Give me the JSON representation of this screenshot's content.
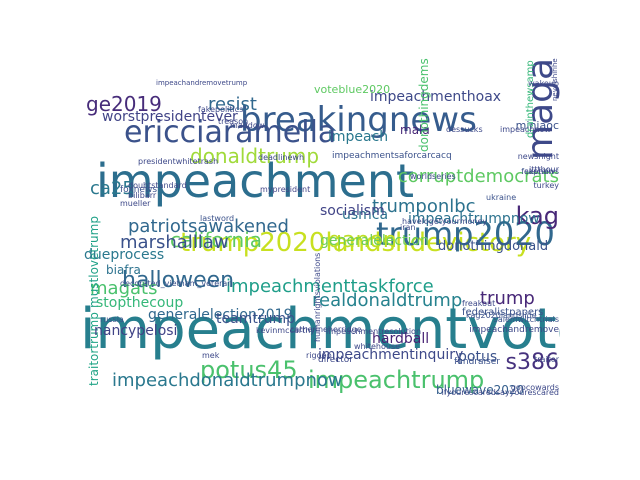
{
  "palette": {
    "dark_purple": "#46327e",
    "blue": "#365c8d",
    "teal": "#277f8e",
    "green_teal": "#1fa187",
    "green": "#4ac16d",
    "lime": "#a0da39",
    "yellow": "#dfe318",
    "indigo": "#482878"
  },
  "words": [
    {
      "text": "impeachmentvote",
      "color": "#277f8e"
    },
    {
      "text": "impeachment",
      "color": "#2c6e8e"
    },
    {
      "text": "trump2020landslidevictory",
      "color": "#c8e020"
    },
    {
      "text": "breakingnews",
      "color": "#365c8d"
    },
    {
      "text": "ericciaramella",
      "color": "#3b528b"
    },
    {
      "text": "trump2020",
      "color": "#31688e"
    },
    {
      "text": "maga",
      "color": "#3e4989"
    },
    {
      "text": "impeachtrump",
      "color": "#4ac16d"
    },
    {
      "text": "kag",
      "color": "#482878"
    },
    {
      "text": "qanon",
      "color": "#bddf26"
    },
    {
      "text": "california",
      "color": "#5ec962"
    },
    {
      "text": "potus45",
      "color": "#4ac16d"
    },
    {
      "text": "marshalllaw",
      "color": "#3b528b"
    },
    {
      "text": "patriotsawakened",
      "color": "#31688e"
    },
    {
      "text": "donaldtrump",
      "color": "#a0da39"
    },
    {
      "text": "halloween",
      "color": "#31688e"
    },
    {
      "text": "resist",
      "color": "#31688e"
    },
    {
      "text": "ge2019",
      "color": "#472c7a"
    },
    {
      "text": "impeachmenttaskforce",
      "color": "#1f9e89"
    },
    {
      "text": "realdonaldtrump",
      "color": "#26828e"
    },
    {
      "text": "impeachdonaldtrumpnow",
      "color": "#2a788e"
    },
    {
      "text": "trumponlbc",
      "color": "#2c728e"
    },
    {
      "text": "corruptdemocrats",
      "color": "#5ec962"
    },
    {
      "text": "impeachmenthoax",
      "color": "#3e4989"
    },
    {
      "text": "ca25",
      "color": "#2a788e"
    },
    {
      "text": "magats",
      "color": "#4ac16d"
    },
    {
      "text": "s386",
      "color": "#46327e"
    },
    {
      "text": "stopthecoup",
      "color": "#35b779"
    },
    {
      "text": "mustlovetrump",
      "color": "#1fa187"
    },
    {
      "text": "traitortrump",
      "color": "#20a486"
    },
    {
      "text": "worstpresidentever",
      "color": "#414487"
    },
    {
      "text": "impeach",
      "color": "#2a788e"
    },
    {
      "text": "impeachtrumpnow",
      "color": "#2c728e"
    },
    {
      "text": "generalelection2019",
      "color": "#31688e"
    },
    {
      "text": "trump",
      "color": "#482878"
    },
    {
      "text": "teamtrump",
      "color": "#3b528b"
    },
    {
      "text": "dueprocess",
      "color": "#2a788e"
    },
    {
      "text": "biafra",
      "color": "#2c728e"
    },
    {
      "text": "generalelection",
      "color": "#6ccd5a"
    },
    {
      "text": "donothingdonald",
      "color": "#3b528b"
    },
    {
      "text": "nancypelosi",
      "color": "#404387"
    },
    {
      "text": "impeachmentinquiry",
      "color": "#3e4989"
    },
    {
      "text": "potus",
      "color": "#3b528b"
    },
    {
      "text": "hardball",
      "color": "#482475"
    },
    {
      "text": "bluewave2020",
      "color": "#355f8d"
    },
    {
      "text": "usmca",
      "color": "#2c728e"
    },
    {
      "text": "socialism",
      "color": "#414487"
    },
    {
      "text": "miniaoc",
      "color": "#3b528b"
    },
    {
      "text": "drainthewsamp",
      "color": "#35b779"
    },
    {
      "text": "voteblue2020",
      "color": "#5ec962"
    },
    {
      "text": "mala",
      "color": "#482878"
    },
    {
      "text": "donothingdems",
      "color": "#4ac16d"
    },
    {
      "text": "impeachmentsaforcarcacq",
      "color": "#3b528b"
    },
    {
      "text": "mypresident",
      "color": "#414487"
    },
    {
      "text": "presidentwhitetrash",
      "color": "#3e4989"
    },
    {
      "text": "foxnews",
      "color": "#3b528b"
    },
    {
      "text": "lastword",
      "color": "#3b528b"
    },
    {
      "text": "decorated_vietnam_veteran",
      "color": "#3b528b"
    },
    {
      "text": "kevinmccarthy",
      "color": "#3e4989"
    },
    {
      "text": "ukraine",
      "color": "#3b528b"
    },
    {
      "text": "freakout",
      "color": "#3e4989"
    },
    {
      "text": "fundraiser",
      "color": "#3b528b"
    },
    {
      "text": "traitor",
      "color": "#3e4989"
    },
    {
      "text": "impeachandremove",
      "color": "#3e4989"
    },
    {
      "text": "ifyourescaredsayyourescared",
      "color": "#3e4989"
    },
    {
      "text": "federalistpapers",
      "color": "#3b528b"
    },
    {
      "text": "salemwitchtrials",
      "color": "#3b528b"
    },
    {
      "text": "kag2020landslide",
      "color": "#3b528b"
    },
    {
      "text": "havelogetyourmoney",
      "color": "#3e4989"
    },
    {
      "text": "russia",
      "color": "#3b528b"
    },
    {
      "text": "director",
      "color": "#3e4989"
    },
    {
      "text": "rigopp",
      "color": "#3e4989"
    },
    {
      "text": "mek",
      "color": "#3e4989"
    },
    {
      "text": "iran",
      "color": "#3e4989"
    },
    {
      "text": "turkey",
      "color": "#3e4989"
    },
    {
      "text": "fakenews",
      "color": "#3b528b"
    },
    {
      "text": "nevelshirihe",
      "color": "#3e4989"
    },
    {
      "text": "wakeup",
      "color": "#3e4989"
    },
    {
      "text": "deadlinewh",
      "color": "#3e4989"
    },
    {
      "text": "maddow",
      "color": "#3e4989"
    },
    {
      "text": "dessucks",
      "color": "#3e4989"
    },
    {
      "text": "mueller",
      "color": "#3e4989"
    },
    {
      "text": "captain",
      "color": "#3e4989"
    },
    {
      "text": "impeachandremovetrump",
      "color": "#3e4989"
    },
    {
      "text": "worldseries",
      "color": "#3e4989"
    },
    {
      "text": "doubtstandard",
      "color": "#3e4989"
    },
    {
      "text": "bilibarr",
      "color": "#3e4989"
    },
    {
      "text": "gopcowards",
      "color": "#3e4989"
    },
    {
      "text": "impeachnow",
      "color": "#3e4989"
    },
    {
      "text": "treason",
      "color": "#3e4989"
    },
    {
      "text": "catherineherridge",
      "color": "#3e4989"
    },
    {
      "text": "whitehouse",
      "color": "#3e4989"
    },
    {
      "text": "impeachmentresolution",
      "color": "#3e4989"
    },
    {
      "text": "humanrightsviolations",
      "color": "#3e4989"
    },
    {
      "text": "ittthour",
      "color": "#3e4989"
    },
    {
      "text": "newsnight",
      "color": "#3e4989"
    },
    {
      "text": "fakepolitics",
      "color": "#3e4989"
    }
  ]
}
